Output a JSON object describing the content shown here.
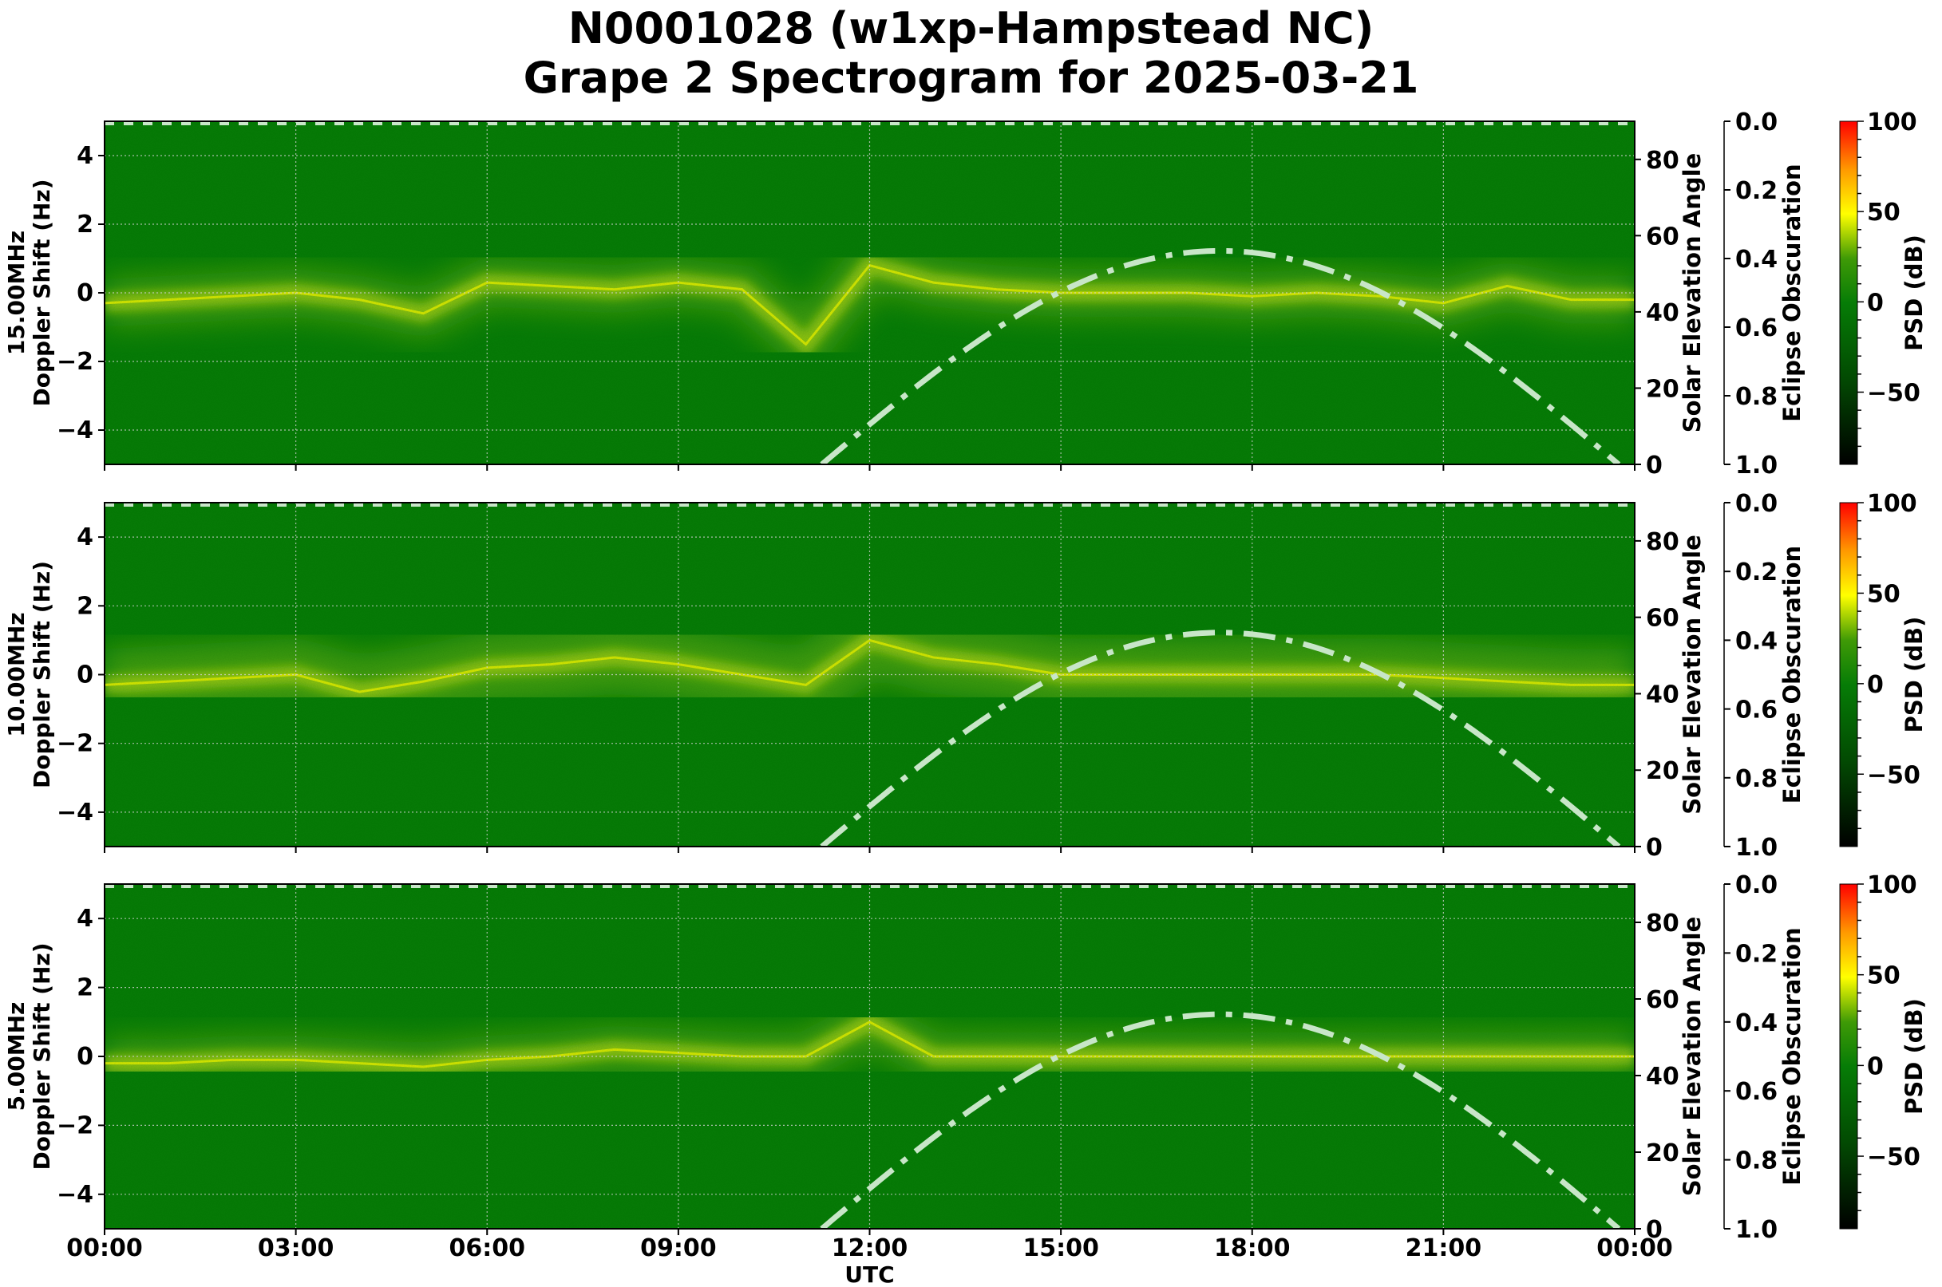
{
  "title": {
    "line1": "N0001028 (w1xp-Hampstead NC)",
    "line2": "Grape 2 Spectrogram for 2025-03-21"
  },
  "colors": {
    "background_green": "#067c06",
    "signal_yellow": "#e6f000",
    "elevation_curve": "#c8e6c8",
    "grid": "#d0d0d0"
  },
  "chart_data": [
    {
      "type": "heatmap",
      "panel": "15.00MHz",
      "ylabel": "15.00MHz\nDoppler Shift (Hz)",
      "xlabel": "",
      "ylim": [
        -5,
        5
      ],
      "yticks": [
        -4,
        -2,
        0,
        2,
        4
      ],
      "right_axis": {
        "label": "Solar Elevation Angle",
        "ylim": [
          0,
          90
        ],
        "ticks": [
          0,
          20,
          40,
          60,
          80
        ]
      },
      "eclipse_axis": {
        "label": "Eclipse Obscuration",
        "ylim": [
          1.0,
          0.0
        ],
        "ticks": [
          "0.0",
          "0.2",
          "0.4",
          "0.6",
          "0.8",
          "1.0"
        ]
      },
      "colorbar": {
        "label": "PSD (dB)",
        "range": [
          -90,
          100
        ],
        "ticks": [
          -50,
          0,
          50,
          100
        ]
      },
      "signal_trace": [
        [
          0,
          -0.3
        ],
        [
          1,
          -0.2
        ],
        [
          2,
          -0.1
        ],
        [
          3,
          0.0
        ],
        [
          4,
          -0.2
        ],
        [
          5,
          -0.6
        ],
        [
          6,
          0.3
        ],
        [
          7,
          0.2
        ],
        [
          8,
          0.1
        ],
        [
          9,
          0.3
        ],
        [
          10,
          0.1
        ],
        [
          11,
          -1.5
        ],
        [
          12,
          0.8
        ],
        [
          13,
          0.3
        ],
        [
          14,
          0.1
        ],
        [
          15,
          0.0
        ],
        [
          16,
          0.0
        ],
        [
          17,
          0.0
        ],
        [
          18,
          -0.1
        ],
        [
          19,
          0.0
        ],
        [
          20,
          -0.1
        ],
        [
          21,
          -0.3
        ],
        [
          22,
          0.2
        ],
        [
          23,
          -0.2
        ],
        [
          24,
          -0.2
        ]
      ],
      "grid": true
    },
    {
      "type": "heatmap",
      "panel": "10.00MHz",
      "ylabel": "10.00MHz\nDoppler Shift (Hz)",
      "ylim": [
        -5,
        5
      ],
      "yticks": [
        -4,
        -2,
        0,
        2,
        4
      ],
      "right_axis": {
        "label": "Solar Elevation Angle",
        "ylim": [
          0,
          90
        ],
        "ticks": [
          0,
          20,
          40,
          60,
          80
        ]
      },
      "eclipse_axis": {
        "label": "Eclipse Obscuration",
        "ylim": [
          1.0,
          0.0
        ],
        "ticks": [
          "0.0",
          "0.2",
          "0.4",
          "0.6",
          "0.8",
          "1.0"
        ]
      },
      "colorbar": {
        "label": "PSD (dB)",
        "range": [
          -90,
          100
        ],
        "ticks": [
          -50,
          0,
          50,
          100
        ]
      },
      "signal_trace": [
        [
          0,
          -0.3
        ],
        [
          1,
          -0.2
        ],
        [
          2,
          -0.1
        ],
        [
          3,
          0.0
        ],
        [
          4,
          -0.5
        ],
        [
          5,
          -0.2
        ],
        [
          6,
          0.2
        ],
        [
          7,
          0.3
        ],
        [
          8,
          0.5
        ],
        [
          9,
          0.3
        ],
        [
          10,
          0.0
        ],
        [
          11,
          -0.3
        ],
        [
          12,
          1.0
        ],
        [
          13,
          0.5
        ],
        [
          14,
          0.3
        ],
        [
          15,
          0.0
        ],
        [
          16,
          0.0
        ],
        [
          18,
          0.0
        ],
        [
          20,
          0.0
        ],
        [
          22,
          -0.2
        ],
        [
          23,
          -0.3
        ],
        [
          24,
          -0.3
        ]
      ],
      "grid": true
    },
    {
      "type": "heatmap",
      "panel": "5.00MHz",
      "ylabel": "5.00MHz\nDoppler Shift (Hz)",
      "xlabel": "UTC",
      "ylim": [
        -5,
        5
      ],
      "yticks": [
        -4,
        -2,
        0,
        2,
        4
      ],
      "right_axis": {
        "label": "Solar Elevation Angle",
        "ylim": [
          0,
          90
        ],
        "ticks": [
          0,
          20,
          40,
          60,
          80
        ]
      },
      "eclipse_axis": {
        "label": "Eclipse Obscuration",
        "ylim": [
          1.0,
          0.0
        ],
        "ticks": [
          "0.0",
          "0.2",
          "0.4",
          "0.6",
          "0.8",
          "1.0"
        ]
      },
      "colorbar": {
        "label": "PSD (dB)",
        "range": [
          -90,
          100
        ],
        "ticks": [
          -50,
          0,
          50,
          100
        ]
      },
      "signal_trace": [
        [
          0,
          -0.2
        ],
        [
          1,
          -0.2
        ],
        [
          2,
          -0.1
        ],
        [
          3,
          -0.1
        ],
        [
          4,
          -0.2
        ],
        [
          5,
          -0.3
        ],
        [
          6,
          -0.1
        ],
        [
          7,
          0.0
        ],
        [
          8,
          0.2
        ],
        [
          9,
          0.1
        ],
        [
          10,
          0.0
        ],
        [
          11,
          0.0
        ],
        [
          12,
          1.0
        ],
        [
          13,
          0.0
        ],
        [
          24,
          0.0
        ]
      ],
      "grid": true
    }
  ],
  "x_axis": {
    "label": "UTC",
    "ticks": [
      "00:00",
      "03:00",
      "06:00",
      "09:00",
      "12:00",
      "15:00",
      "18:00",
      "21:00",
      "00:00"
    ]
  },
  "solar_elevation": {
    "style": "dash-dot",
    "points_hours_deg": [
      [
        11.25,
        0
      ],
      [
        12,
        8
      ],
      [
        13,
        20
      ],
      [
        14,
        32
      ],
      [
        15,
        42
      ],
      [
        16,
        50
      ],
      [
        17,
        55
      ],
      [
        17.3,
        56
      ],
      [
        18,
        55
      ],
      [
        19,
        50
      ],
      [
        20,
        42
      ],
      [
        21,
        31
      ],
      [
        22,
        19
      ],
      [
        23,
        7
      ],
      [
        23.75,
        0
      ]
    ]
  }
}
